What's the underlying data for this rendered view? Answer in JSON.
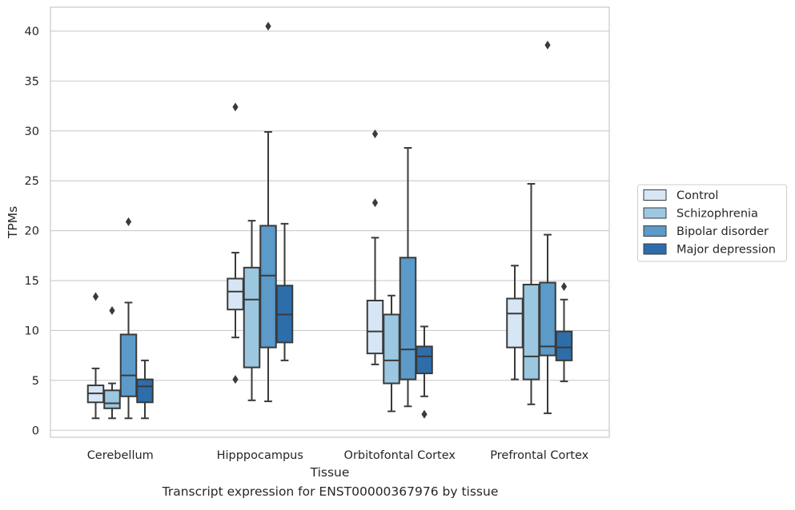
{
  "chart_data": {
    "type": "box",
    "xlabel": "Tissue",
    "ylabel": "TPMs",
    "ylim": [
      -0.7,
      42.4
    ],
    "yticks": [
      0,
      5,
      10,
      15,
      20,
      25,
      30,
      35,
      40
    ],
    "grid": true,
    "legend_position": "right",
    "categories": [
      "Cerebellum",
      "Hipppocampus",
      "Orbitofontal Cortex",
      "Prefrontal Cortex"
    ],
    "series": [
      {
        "name": "Control",
        "color": "#d6e6f4",
        "boxes": [
          {
            "whislo": 1.2,
            "q1": 2.8,
            "med": 3.7,
            "q3": 4.5,
            "whishi": 6.2,
            "fliers": [
              13.4
            ]
          },
          {
            "whislo": 9.3,
            "q1": 12.1,
            "med": 13.9,
            "q3": 15.2,
            "whishi": 17.8,
            "fliers": [
              32.4,
              5.1
            ]
          },
          {
            "whislo": 6.6,
            "q1": 7.7,
            "med": 9.9,
            "q3": 13.0,
            "whishi": 19.3,
            "fliers": [
              29.7,
              22.8
            ]
          },
          {
            "whislo": 5.1,
            "q1": 8.3,
            "med": 11.7,
            "q3": 13.2,
            "whishi": 16.5,
            "fliers": []
          }
        ]
      },
      {
        "name": "Schizophrenia",
        "color": "#9bc7e0",
        "boxes": [
          {
            "whislo": 1.2,
            "q1": 2.2,
            "med": 2.7,
            "q3": 4.0,
            "whishi": 4.7,
            "fliers": [
              12.0
            ]
          },
          {
            "whislo": 3.0,
            "q1": 6.3,
            "med": 13.1,
            "q3": 16.3,
            "whishi": 21.0,
            "fliers": []
          },
          {
            "whislo": 1.9,
            "q1": 4.7,
            "med": 7.0,
            "q3": 11.6,
            "whishi": 13.5,
            "fliers": []
          },
          {
            "whislo": 2.6,
            "q1": 5.1,
            "med": 7.4,
            "q3": 14.6,
            "whishi": 24.7,
            "fliers": []
          }
        ]
      },
      {
        "name": "Bipolar disorder",
        "color": "#5b9ac9",
        "boxes": [
          {
            "whislo": 1.2,
            "q1": 3.4,
            "med": 5.5,
            "q3": 9.6,
            "whishi": 12.8,
            "fliers": [
              20.9
            ]
          },
          {
            "whislo": 2.9,
            "q1": 8.3,
            "med": 15.5,
            "q3": 20.5,
            "whishi": 29.9,
            "fliers": [
              40.5
            ]
          },
          {
            "whislo": 2.4,
            "q1": 5.1,
            "med": 8.1,
            "q3": 17.3,
            "whishi": 28.3,
            "fliers": []
          },
          {
            "whislo": 1.7,
            "q1": 7.5,
            "med": 8.4,
            "q3": 14.8,
            "whishi": 19.6,
            "fliers": [
              38.6
            ]
          }
        ]
      },
      {
        "name": "Major depression",
        "color": "#2d6da9",
        "boxes": [
          {
            "whislo": 1.2,
            "q1": 2.8,
            "med": 4.4,
            "q3": 5.1,
            "whishi": 7.0,
            "fliers": []
          },
          {
            "whislo": 7.0,
            "q1": 8.8,
            "med": 11.6,
            "q3": 14.5,
            "whishi": 20.7,
            "fliers": []
          },
          {
            "whislo": 3.4,
            "q1": 5.7,
            "med": 7.4,
            "q3": 8.4,
            "whishi": 10.4,
            "fliers": [
              1.6
            ]
          },
          {
            "whislo": 4.9,
            "q1": 7.0,
            "med": 8.3,
            "q3": 9.9,
            "whishi": 13.1,
            "fliers": [
              14.4
            ]
          }
        ]
      }
    ]
  },
  "caption": "Transcript expression for ENST00000367976 by tissue"
}
